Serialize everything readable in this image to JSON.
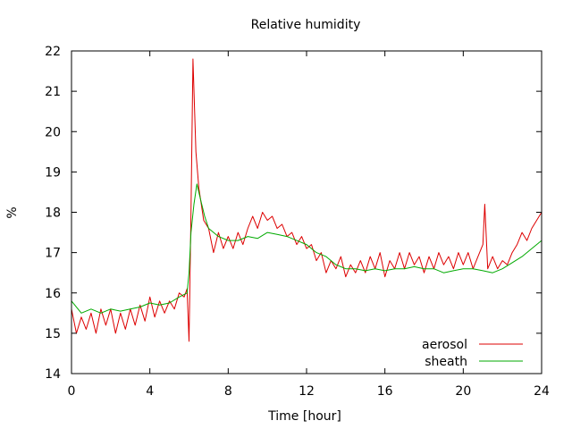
{
  "chart_data": {
    "type": "line",
    "title": "Relative humidity",
    "xlabel": "Time [hour]",
    "ylabel": "%",
    "xlim": [
      0,
      24
    ],
    "ylim": [
      14,
      22
    ],
    "xticks": [
      "0",
      "4",
      "8",
      "12",
      "16",
      "20",
      "24"
    ],
    "yticks": [
      "14",
      "15",
      "16",
      "17",
      "18",
      "19",
      "20",
      "21",
      "22"
    ],
    "grid": false,
    "legend_position": "bottom-right",
    "series": [
      {
        "name": "aerosol",
        "color": "#dd0000",
        "points": [
          [
            0,
            15.6
          ],
          [
            0.25,
            15.0
          ],
          [
            0.5,
            15.4
          ],
          [
            0.75,
            15.1
          ],
          [
            1,
            15.5
          ],
          [
            1.25,
            15.0
          ],
          [
            1.5,
            15.6
          ],
          [
            1.75,
            15.2
          ],
          [
            2,
            15.6
          ],
          [
            2.25,
            15.0
          ],
          [
            2.5,
            15.5
          ],
          [
            2.75,
            15.1
          ],
          [
            3,
            15.6
          ],
          [
            3.25,
            15.2
          ],
          [
            3.5,
            15.7
          ],
          [
            3.75,
            15.3
          ],
          [
            4,
            15.9
          ],
          [
            4.25,
            15.4
          ],
          [
            4.5,
            15.8
          ],
          [
            4.75,
            15.5
          ],
          [
            5,
            15.8
          ],
          [
            5.25,
            15.6
          ],
          [
            5.5,
            16.0
          ],
          [
            5.75,
            15.9
          ],
          [
            5.9,
            16.1
          ],
          [
            6.0,
            14.8
          ],
          [
            6.1,
            18.0
          ],
          [
            6.2,
            21.8
          ],
          [
            6.35,
            19.5
          ],
          [
            6.5,
            18.6
          ],
          [
            6.75,
            17.8
          ],
          [
            7,
            17.6
          ],
          [
            7.25,
            17.0
          ],
          [
            7.5,
            17.5
          ],
          [
            7.75,
            17.1
          ],
          [
            8,
            17.4
          ],
          [
            8.25,
            17.1
          ],
          [
            8.5,
            17.5
          ],
          [
            8.75,
            17.2
          ],
          [
            9,
            17.6
          ],
          [
            9.25,
            17.9
          ],
          [
            9.5,
            17.6
          ],
          [
            9.75,
            18.0
          ],
          [
            10,
            17.8
          ],
          [
            10.25,
            17.9
          ],
          [
            10.5,
            17.6
          ],
          [
            10.75,
            17.7
          ],
          [
            11,
            17.4
          ],
          [
            11.25,
            17.5
          ],
          [
            11.5,
            17.2
          ],
          [
            11.75,
            17.4
          ],
          [
            12,
            17.1
          ],
          [
            12.25,
            17.2
          ],
          [
            12.5,
            16.8
          ],
          [
            12.75,
            17.0
          ],
          [
            13,
            16.5
          ],
          [
            13.25,
            16.8
          ],
          [
            13.5,
            16.6
          ],
          [
            13.75,
            16.9
          ],
          [
            14,
            16.4
          ],
          [
            14.25,
            16.7
          ],
          [
            14.5,
            16.5
          ],
          [
            14.75,
            16.8
          ],
          [
            15,
            16.5
          ],
          [
            15.25,
            16.9
          ],
          [
            15.5,
            16.6
          ],
          [
            15.75,
            17.0
          ],
          [
            16,
            16.4
          ],
          [
            16.25,
            16.8
          ],
          [
            16.5,
            16.6
          ],
          [
            16.75,
            17.0
          ],
          [
            17,
            16.6
          ],
          [
            17.25,
            17.0
          ],
          [
            17.5,
            16.7
          ],
          [
            17.75,
            16.9
          ],
          [
            18,
            16.5
          ],
          [
            18.25,
            16.9
          ],
          [
            18.5,
            16.6
          ],
          [
            18.75,
            17.0
          ],
          [
            19,
            16.7
          ],
          [
            19.25,
            16.9
          ],
          [
            19.5,
            16.6
          ],
          [
            19.75,
            17.0
          ],
          [
            20,
            16.7
          ],
          [
            20.25,
            17.0
          ],
          [
            20.5,
            16.6
          ],
          [
            20.75,
            16.9
          ],
          [
            21,
            17.2
          ],
          [
            21.1,
            18.2
          ],
          [
            21.25,
            16.6
          ],
          [
            21.5,
            16.9
          ],
          [
            21.75,
            16.6
          ],
          [
            22,
            16.8
          ],
          [
            22.25,
            16.7
          ],
          [
            22.5,
            17.0
          ],
          [
            22.75,
            17.2
          ],
          [
            23,
            17.5
          ],
          [
            23.25,
            17.3
          ],
          [
            23.5,
            17.6
          ],
          [
            23.75,
            17.8
          ],
          [
            24,
            18.0
          ]
        ]
      },
      {
        "name": "sheath",
        "color": "#00aa00",
        "points": [
          [
            0,
            15.8
          ],
          [
            0.5,
            15.5
          ],
          [
            1,
            15.6
          ],
          [
            1.5,
            15.5
          ],
          [
            2,
            15.6
          ],
          [
            2.5,
            15.55
          ],
          [
            3,
            15.6
          ],
          [
            3.5,
            15.65
          ],
          [
            4,
            15.75
          ],
          [
            4.5,
            15.7
          ],
          [
            5,
            15.75
          ],
          [
            5.5,
            15.9
          ],
          [
            5.9,
            16.0
          ],
          [
            6.0,
            16.5
          ],
          [
            6.1,
            17.5
          ],
          [
            6.25,
            18.2
          ],
          [
            6.4,
            18.7
          ],
          [
            6.6,
            18.3
          ],
          [
            6.8,
            17.9
          ],
          [
            7,
            17.6
          ],
          [
            7.5,
            17.4
          ],
          [
            8,
            17.3
          ],
          [
            8.5,
            17.3
          ],
          [
            9,
            17.4
          ],
          [
            9.5,
            17.35
          ],
          [
            10,
            17.5
          ],
          [
            10.5,
            17.45
          ],
          [
            11,
            17.4
          ],
          [
            11.5,
            17.3
          ],
          [
            12,
            17.2
          ],
          [
            12.5,
            17.0
          ],
          [
            13,
            16.9
          ],
          [
            13.5,
            16.7
          ],
          [
            14,
            16.6
          ],
          [
            14.5,
            16.6
          ],
          [
            15,
            16.55
          ],
          [
            15.5,
            16.6
          ],
          [
            16,
            16.55
          ],
          [
            16.5,
            16.6
          ],
          [
            17,
            16.6
          ],
          [
            17.5,
            16.65
          ],
          [
            18,
            16.6
          ],
          [
            18.5,
            16.6
          ],
          [
            19,
            16.5
          ],
          [
            19.5,
            16.55
          ],
          [
            20,
            16.6
          ],
          [
            20.5,
            16.6
          ],
          [
            21,
            16.55
          ],
          [
            21.5,
            16.5
          ],
          [
            22,
            16.6
          ],
          [
            22.5,
            16.75
          ],
          [
            23,
            16.9
          ],
          [
            23.5,
            17.1
          ],
          [
            24,
            17.3
          ]
        ]
      }
    ]
  }
}
